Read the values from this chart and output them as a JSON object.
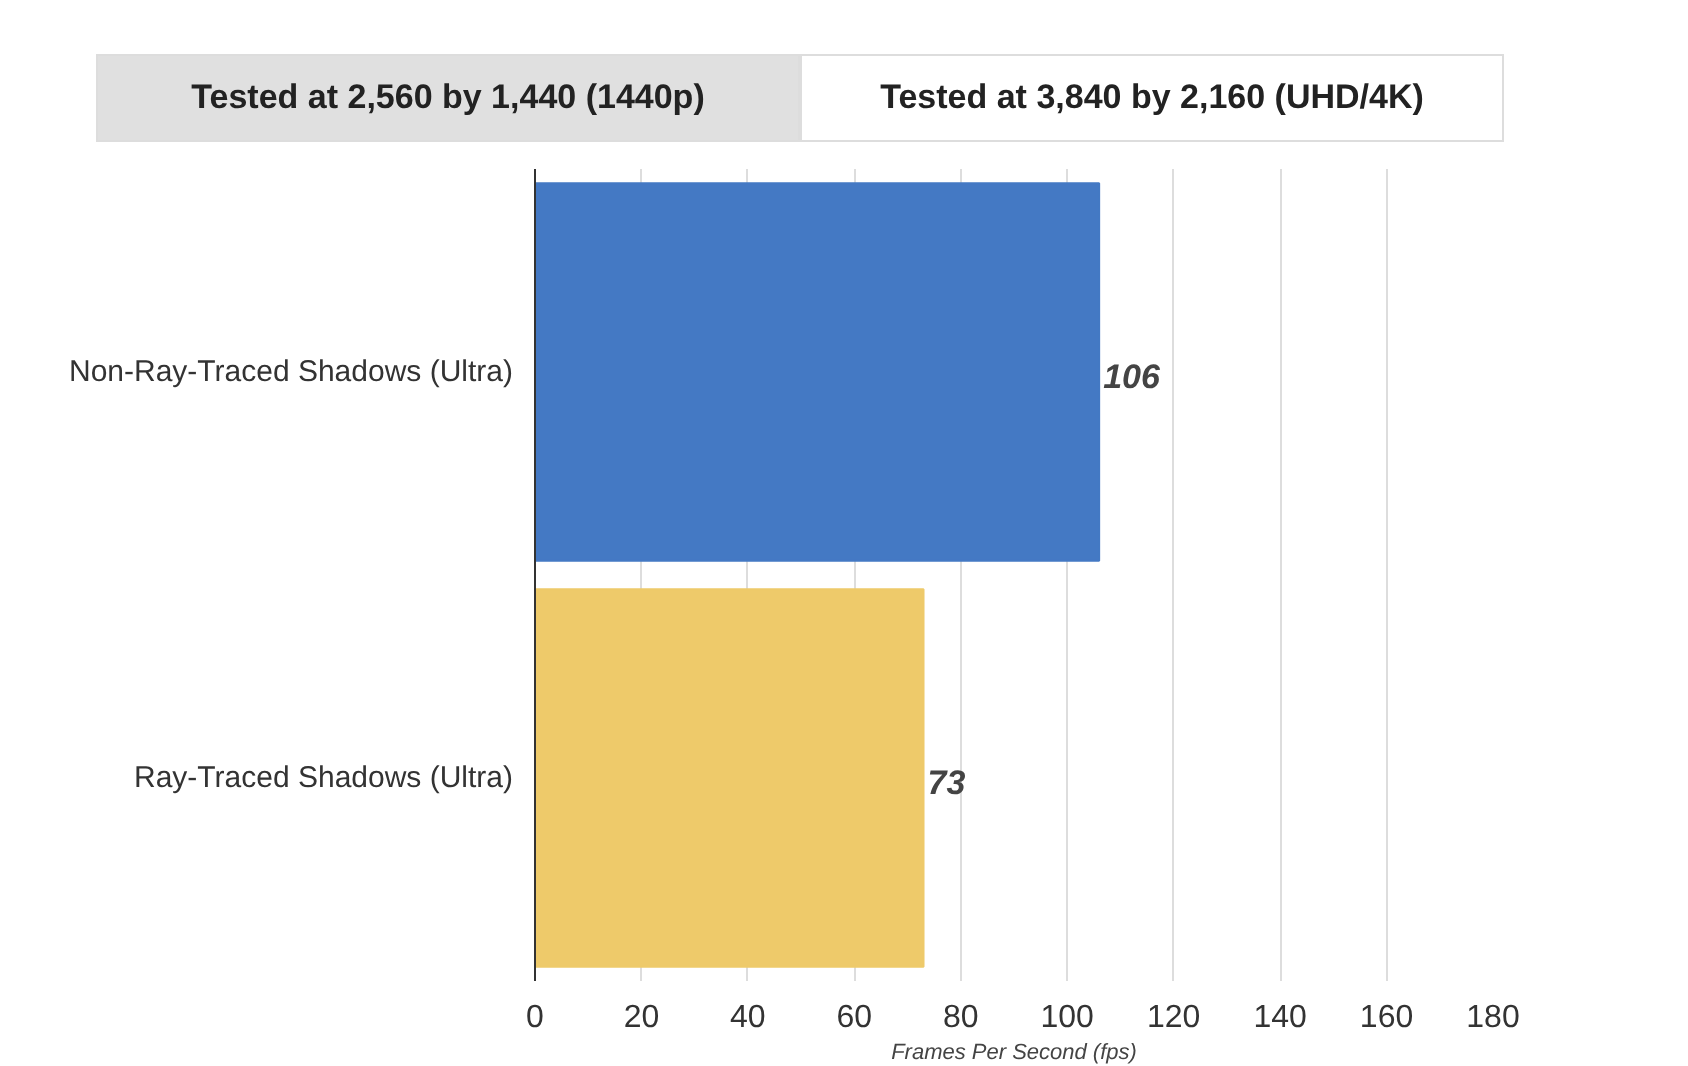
{
  "chart_data": {
    "type": "bar",
    "orientation": "horizontal",
    "annotations": [
      "Tested at 2,560 by 1,440 (1440p)",
      "Tested at 3,840 by 2,160 (UHD/4K)"
    ],
    "categories": [
      "Non-Ray-Traced Shadows (Ultra)",
      "Ray-Traced Shadows (Ultra)"
    ],
    "values": [
      106,
      73
    ],
    "colors": [
      "#4479c4",
      "#eeca6a"
    ],
    "xlabel": "Frames Per Second (fps)",
    "xlim": [
      0,
      180
    ],
    "xticks": [
      0,
      20,
      40,
      60,
      80,
      100,
      120,
      140,
      160,
      180
    ],
    "grid": "x",
    "data_labels": true
  }
}
